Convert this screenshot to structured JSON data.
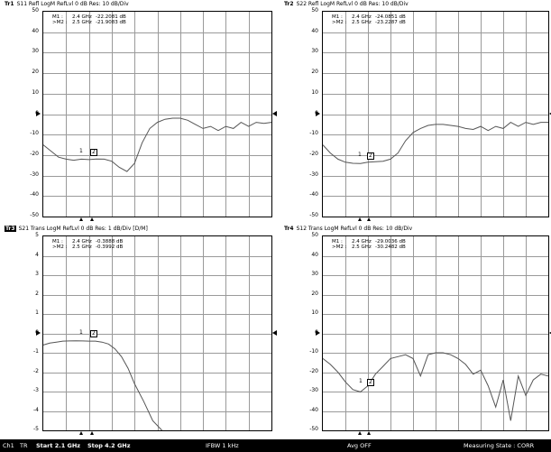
{
  "channels": [
    {
      "trace": "Tr1",
      "selected": false,
      "header": "S11 Refl LogM RefLvl 0 dB Res: 10 dB/Div",
      "y_labels": [
        "50",
        "40",
        "30",
        "20",
        "10",
        "0",
        "-10",
        "-20",
        "-30",
        "-40",
        "-50"
      ],
      "markers": [
        {
          "name": "M1 :",
          "freq": "2.4 GHz",
          "value": "-22.2081 dB"
        },
        {
          "name": ">M2 :",
          "freq": "2.5 GHz",
          "value": "-21.9083 dB"
        }
      ],
      "marker_tags": [
        "1",
        "2"
      ],
      "trace_points_db": [
        -15,
        -18,
        -21,
        -22,
        -22.5,
        -22,
        -22.2,
        -21.9,
        -22,
        -23,
        -26,
        -28,
        -24,
        -14,
        -7,
        -4,
        -2.5,
        -2,
        -2,
        -3,
        -5,
        -7,
        -6,
        -8,
        -6,
        -7,
        -4,
        -6,
        -4,
        -4.5,
        -4
      ]
    },
    {
      "trace": "Tr2",
      "selected": false,
      "header": "S22 Refl LogM RefLvl 0 dB Res: 10 dB/Div",
      "y_labels": [
        "50",
        "40",
        "30",
        "20",
        "10",
        "0",
        "-10",
        "-20",
        "-30",
        "-40",
        "-50"
      ],
      "markers": [
        {
          "name": "M1 :",
          "freq": "2.4 GHz",
          "value": "-24.0851 dB"
        },
        {
          "name": ">M2 :",
          "freq": "2.5 GHz",
          "value": "-23.2287 dB"
        }
      ],
      "marker_tags": [
        "1",
        "2"
      ],
      "trace_points_db": [
        -15,
        -19,
        -22,
        -23.5,
        -24,
        -24.1,
        -23.5,
        -23.2,
        -23,
        -22,
        -19,
        -13,
        -9,
        -7,
        -5.5,
        -5,
        -5,
        -5.5,
        -6,
        -7,
        -7.5,
        -6,
        -8,
        -6,
        -7,
        -4,
        -6,
        -4,
        -5,
        -4,
        -4
      ]
    },
    {
      "trace": "Tr3",
      "selected": true,
      "header": "S21 Trans LogM RefLvl 0 dB Res: 1 dB/Div  [D/M]",
      "y_labels": [
        "5",
        "4",
        "3",
        "2",
        "1",
        "0",
        "-1",
        "-2",
        "-3",
        "-4",
        "-5"
      ],
      "markers": [
        {
          "name": "M1 :",
          "freq": "2.4 GHz",
          "value": "-0.3888 dB"
        },
        {
          "name": ">M2 :",
          "freq": "2.5 GHz",
          "value": "-0.3992 dB"
        }
      ],
      "marker_tags": [
        "1",
        "2"
      ],
      "trace_points_db": [
        -0.6,
        -0.5,
        -0.45,
        -0.4,
        -0.39,
        -0.38,
        -0.39,
        -0.4,
        -0.4,
        -0.45,
        -0.55,
        -0.8,
        -1.2,
        -1.8,
        -2.6,
        -3.5,
        -4.5,
        -5.5
      ]
    },
    {
      "trace": "Tr4",
      "selected": false,
      "header": "S12 Trans LogM RefLvl 0 dB Res: 10 dB/Div",
      "y_labels": [
        "50",
        "40",
        "30",
        "20",
        "10",
        "0",
        "-10",
        "-20",
        "-30",
        "-40",
        "-50"
      ],
      "markers": [
        {
          "name": "M1 :",
          "freq": "2.4 GHz",
          "value": "-29.0036 dB"
        },
        {
          "name": ">M2 :",
          "freq": "2.5 GHz",
          "value": "-30.2482 dB"
        }
      ],
      "marker_tags": [
        "1",
        "2"
      ],
      "trace_points_db": [
        -13,
        -16,
        -20,
        -25,
        -29,
        -30.2,
        -27,
        -21,
        -17,
        -13,
        -12,
        -11,
        -13,
        -22,
        -11,
        -10,
        -10,
        -11,
        -13,
        -16,
        -21,
        -19,
        -27,
        -38,
        -24,
        -45,
        -22,
        -32,
        -24,
        -21,
        -22
      ]
    }
  ],
  "status": {
    "channel": "Ch1",
    "mode": "TR",
    "start": "Start 2.1 GHz",
    "stop": "Stop 4.2 GHz",
    "ifbw": "IFBW 1 kHz",
    "avg": "Avg OFF",
    "state": "Measuring State : CORR"
  },
  "colors": {
    "background": "#ffffff",
    "grid": "#9a9a9a",
    "trace": "#555555",
    "status_bar": "#000000"
  }
}
